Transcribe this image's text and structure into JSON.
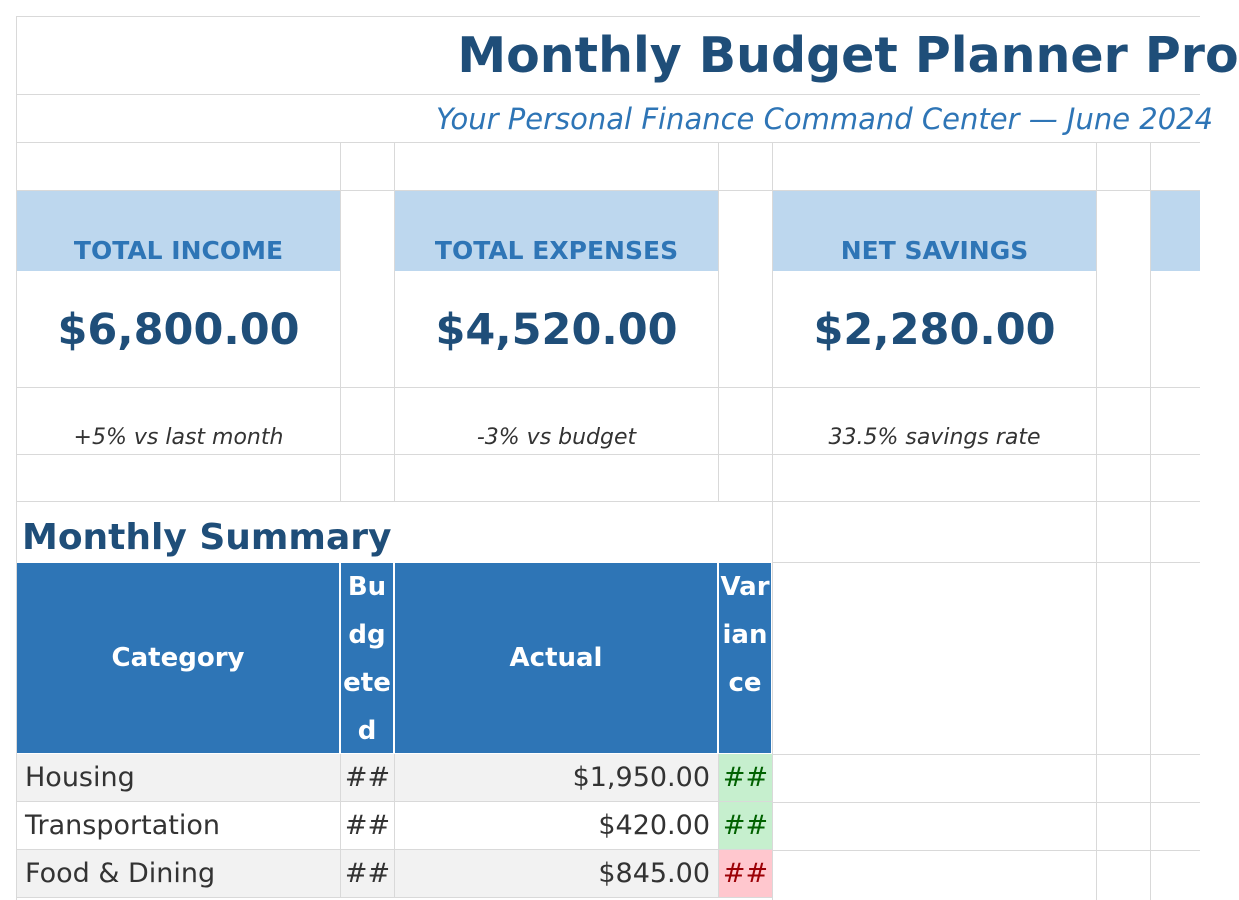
{
  "header": {
    "title": "Monthly Budget Planner Pro",
    "subtitle": "Your Personal Finance Command Center — June 2024"
  },
  "kpis": [
    {
      "label": "TOTAL INCOME",
      "value": "$6,800.00",
      "note": "+5% vs last month"
    },
    {
      "label": "TOTAL EXPENSES",
      "value": "$4,520.00",
      "note": "-3% vs budget"
    },
    {
      "label": "NET SAVINGS",
      "value": "$2,280.00",
      "note": "33.5% savings rate"
    }
  ],
  "summary": {
    "title": "Monthly Summary",
    "columns": [
      "Category",
      "Budgeted",
      "Actual",
      "Variance"
    ],
    "rows": [
      {
        "category": "Housing",
        "budgeted": "##",
        "actual": "$1,950.00",
        "variance": "##",
        "variance_status": "positive"
      },
      {
        "category": "Transportation",
        "budgeted": "##",
        "actual": "$420.00",
        "variance": "##",
        "variance_status": "positive"
      },
      {
        "category": "Food & Dining",
        "budgeted": "##",
        "actual": "$845.00",
        "variance": "##",
        "variance_status": "negative"
      }
    ]
  },
  "colors": {
    "title": "#1f4e79",
    "accent": "#2e75b6",
    "kpi_header_bg": "#bdd7ee",
    "positive_bg": "#c6efce",
    "negative_bg": "#ffc7ce"
  }
}
